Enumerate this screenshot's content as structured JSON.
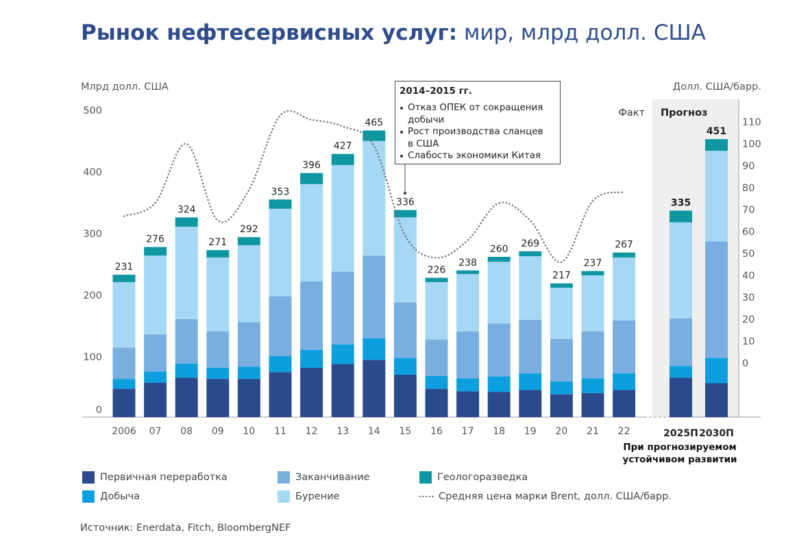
{
  "chart_data": {
    "type": "bar",
    "stacked": true,
    "title_bold": "Рынок нефтесервисных услуг:",
    "title_regular": " мир, млрд долл. США",
    "ylabel": "Млрд долл. США",
    "y2label": "Долл. США/барр.",
    "ylim": [
      0,
      500
    ],
    "y_ticks": [
      0,
      100,
      200,
      300,
      400,
      500
    ],
    "y2_ticks": [
      0,
      10,
      20,
      30,
      40,
      50,
      60,
      70,
      80,
      90,
      100,
      110
    ],
    "categories": [
      "2006",
      "07",
      "08",
      "09",
      "10",
      "11",
      "12",
      "13",
      "14",
      "15",
      "16",
      "17",
      "18",
      "19",
      "20",
      "21",
      "22",
      "2025П",
      "2030П"
    ],
    "forecast": [
      false,
      false,
      false,
      false,
      false,
      false,
      false,
      false,
      false,
      false,
      false,
      false,
      false,
      false,
      false,
      false,
      false,
      true,
      true
    ],
    "totals": [
      231,
      276,
      324,
      271,
      292,
      353,
      396,
      427,
      465,
      336,
      226,
      238,
      260,
      269,
      217,
      237,
      267,
      335,
      451
    ],
    "series": [
      {
        "name": "Первичная переработка",
        "values": [
          46,
          56,
          64,
          62,
          62,
          73,
          80,
          86,
          93,
          69,
          46,
          42,
          41,
          44,
          37,
          39,
          44,
          64,
          55
        ]
      },
      {
        "name": "Добыча",
        "values": [
          16,
          18,
          23,
          18,
          20,
          26,
          29,
          32,
          35,
          27,
          21,
          21,
          25,
          27,
          21,
          24,
          27,
          19,
          41
        ]
      },
      {
        "name": "Заканчивание",
        "values": [
          51,
          60,
          72,
          59,
          72,
          97,
          111,
          118,
          134,
          90,
          59,
          76,
          86,
          87,
          69,
          76,
          86,
          77,
          189
        ]
      },
      {
        "name": "Бурение",
        "values": [
          106,
          128,
          150,
          120,
          125,
          142,
          158,
          173,
          186,
          138,
          93,
          93,
          100,
          103,
          83,
          91,
          102,
          156,
          147
        ]
      },
      {
        "name": "Геологоразведка",
        "values": [
          12,
          14,
          15,
          12,
          13,
          15,
          18,
          18,
          17,
          12,
          7,
          6,
          8,
          8,
          7,
          7,
          8,
          19,
          19
        ]
      }
    ],
    "line": {
      "name": "Средняя цена марки Brent, долл. США/барр.",
      "values": [
        67,
        73,
        100,
        65,
        79,
        113,
        111,
        108,
        99,
        58,
        48,
        56,
        73,
        65,
        46,
        74,
        78,
        null,
        null
      ]
    },
    "period_labels": {
      "fact": "Факт",
      "forecast": "Прогноз"
    },
    "forecast_note": [
      "При прогнозируемом",
      "устойчивом развитии"
    ],
    "annotation": {
      "title": "2014–2015 гг.",
      "items": [
        [
          "Отказ ОПЕК от сокращения",
          "добычи"
        ],
        [
          "Рост производства сланцев",
          "в США"
        ],
        [
          "Слабость экономики Китая"
        ]
      ]
    }
  },
  "source": "Источник: Enerdata, Fitch, BloombergNEF",
  "colors": {
    "title": "#2f4d8c",
    "series": [
      "#2b4a8e",
      "#0b9fe0",
      "#78aee0",
      "#a5d8f4",
      "#0e97a2"
    ],
    "line": "#777777",
    "forecast_bg": "#efefef",
    "axis": "#9a9a9a"
  }
}
